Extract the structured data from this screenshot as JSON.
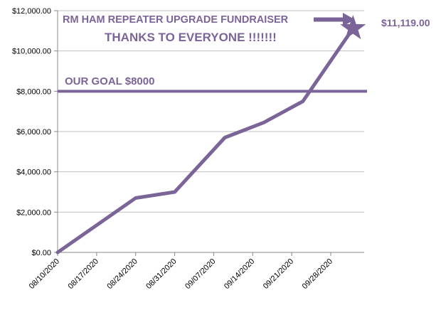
{
  "chart_data": {
    "type": "line",
    "title": "RM HAM REPEATER UPGRADE FUNDRAISER",
    "subtitle": "THANKS TO EVERYONE !!!!!!!",
    "goal_label": "OUR GOAL $8000",
    "goal_value": 8000,
    "total_label": "$11,119.00",
    "total_value": 11119,
    "xlabel": "",
    "ylabel": "",
    "ylim": [
      0,
      12000
    ],
    "yticks": [
      0,
      2000,
      4000,
      6000,
      8000,
      10000,
      12000
    ],
    "ytick_labels": [
      "$0.00",
      "$2,000.00",
      "$4,000.00",
      "$6,000.00",
      "$8,000.00",
      "$10,000.00",
      "$12,000.00"
    ],
    "xlim": [
      "2020-08-10",
      "2020-10-04"
    ],
    "xticks": [
      "2020-08-10",
      "2020-08-17",
      "2020-08-24",
      "2020-08-31",
      "2020-09-07",
      "2020-09-14",
      "2020-09-21",
      "2020-09-28"
    ],
    "xtick_labels": [
      "08/10/2020",
      "08/17/2020",
      "08/24/2020",
      "08/31/2020",
      "09/07/2020",
      "09/14/2020",
      "09/21/2020",
      "09/28/2020"
    ],
    "series": [
      {
        "x": [
          "2020-08-10",
          "2020-08-24",
          "2020-08-31",
          "2020-09-09",
          "2020-09-16",
          "2020-09-23",
          "2020-10-02"
        ],
        "values": [
          0,
          2700,
          3000,
          5700,
          6450,
          7500,
          11119
        ]
      }
    ],
    "grid": true,
    "colors": {
      "line": "#7b6598",
      "goal": "#7b6598",
      "grid": "#bfbfbf",
      "axis": "#888888",
      "text": "#7b6598"
    }
  }
}
